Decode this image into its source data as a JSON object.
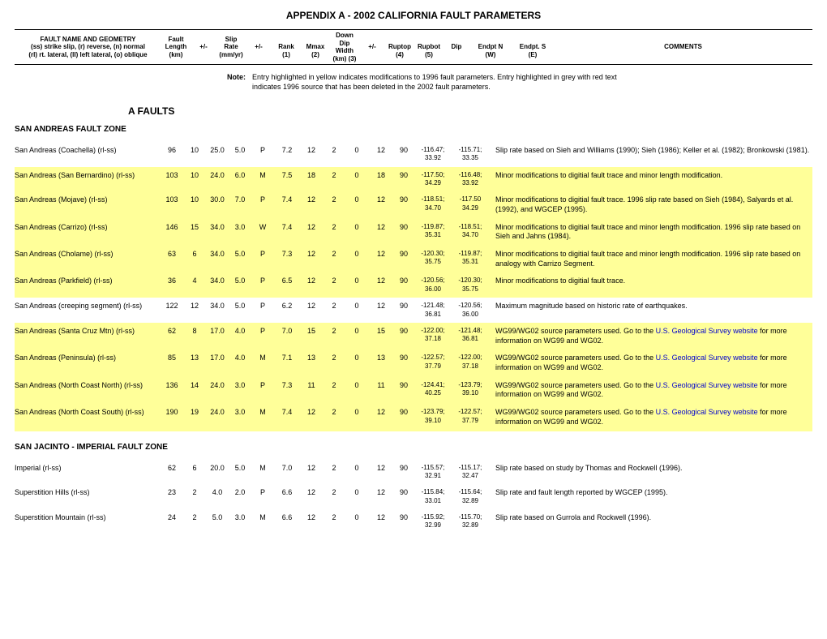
{
  "title": "APPENDIX A - 2002 CALIFORNIA FAULT PARAMETERS",
  "headers": {
    "col1_l1": "FAULT NAME AND GEOMETRY",
    "col1_l2": "(ss) strike slip, (r) reverse, (n) normal",
    "col1_l3": "(rl) rt. lateral, (ll) left lateral, (o) oblique",
    "col2_l1": "Fault",
    "col2_l2": "Length",
    "col2_l3": "(km)",
    "col3": "+/-",
    "col4_l1": "Slip",
    "col4_l2": "Rate",
    "col4_l3": "(mm/yr)",
    "col5": "+/-",
    "col6_l1": "Rank",
    "col6_l2": "(1)",
    "col7_l1": "Mmax",
    "col7_l2": "(2)",
    "col8_l1": "Down Dip",
    "col8_l2": "Width",
    "col8_l3": "(km) (3)",
    "col9": "+/-",
    "col10_l1": "Ruptop",
    "col10_l2": "(4)",
    "col11_l1": "Rupbot",
    "col11_l2": "(5)",
    "col12": "Dip",
    "col13_l1": "Endpt N",
    "col13_l2": "(W)",
    "col14_l1": "Endpt. S",
    "col14_l2": "(E)",
    "col15": "COMMENTS"
  },
  "note_label": "Note:",
  "note_text": "Entry highlighted in yellow indicates modifications to 1996 fault parameters.  Entry highlighted in grey with red text indicates 1996 source that has been deleted in the 2002 fault parameters.",
  "section_a": "A FAULTS",
  "zones": [
    {
      "heading": "SAN ANDREAS FAULT ZONE",
      "rows": [
        {
          "hl": false,
          "name": "San Andreas (Coachella) (rl-ss)",
          "len": "96",
          "lenpm": "10",
          "rate": "25.0",
          "ratepm": "5.0",
          "rank": "P",
          "mmax": "7.2",
          "width": "12",
          "wpm": "2",
          "rtop": "0",
          "rbot": "12",
          "dip": "90",
          "endn": "-116.47; 33.92",
          "ends": "-115.71; 33.35",
          "comm": "Slip rate based on Sieh and Williams (1990); Sieh (1986); Keller et al. (1982); Bronkowski (1981)."
        },
        {
          "hl": true,
          "name": "San Andreas (San Bernardino) (rl-ss)",
          "len": "103",
          "lenpm": "10",
          "rate": "24.0",
          "ratepm": "6.0",
          "rank": "M",
          "mmax": "7.5",
          "width": "18",
          "wpm": "2",
          "rtop": "0",
          "rbot": "18",
          "dip": "90",
          "endn": "-117.50; 34.29",
          "ends": "-116.48; 33.92",
          "comm": "Minor modifications to digitial fault trace and minor length modification."
        },
        {
          "hl": true,
          "name": "San Andreas (Mojave) (rl-ss)",
          "len": "103",
          "lenpm": "10",
          "rate": "30.0",
          "ratepm": "7.0",
          "rank": "P",
          "mmax": "7.4",
          "width": "12",
          "wpm": "2",
          "rtop": "0",
          "rbot": "12",
          "dip": "90",
          "endn": "-118.51; 34.70",
          "ends": "-117.50 34.29",
          "comm": "Minor modifications to digitial fault trace. 1996 slip rate based on Sieh (1984), Salyards et al. (1992), and WGCEP (1995)."
        },
        {
          "hl": true,
          "name": "San Andreas (Carrizo) (rl-ss)",
          "len": "146",
          "lenpm": "15",
          "rate": "34.0",
          "ratepm": "3.0",
          "rank": "W",
          "mmax": "7.4",
          "width": "12",
          "wpm": "2",
          "rtop": "0",
          "rbot": "12",
          "dip": "90",
          "endn": "-119.87; 35.31",
          "ends": "-118.51; 34.70",
          "comm": "Minor modifications to digitial fault trace and minor length modification. 1996 slip rate based on Sieh and Jahns (1984)."
        },
        {
          "hl": true,
          "name": "San Andreas (Cholame) (rl-ss)",
          "len": "63",
          "lenpm": "6",
          "rate": "34.0",
          "ratepm": "5.0",
          "rank": "P",
          "mmax": "7.3",
          "width": "12",
          "wpm": "2",
          "rtop": "0",
          "rbot": "12",
          "dip": "90",
          "endn": "-120.30; 35.75",
          "ends": "-119.87; 35.31",
          "comm": "Minor modifications to digitial fault trace and minor length modification. 1996 slip rate based on analogy with Carrizo Segment."
        },
        {
          "hl": true,
          "name": "San  Andreas (Parkfield) (rl-ss)",
          "len": "36",
          "lenpm": "4",
          "rate": "34.0",
          "ratepm": "5.0",
          "rank": "P",
          "mmax": "6.5",
          "width": "12",
          "wpm": "2",
          "rtop": "0",
          "rbot": "12",
          "dip": "90",
          "endn": "-120.56; 36.00",
          "ends": "-120.30; 35.75",
          "comm": "Minor modifications to digitial fault trace."
        },
        {
          "hl": false,
          "name": "San Andreas (creeping segment) (rl-ss)",
          "len": "122",
          "lenpm": "12",
          "rate": "34.0",
          "ratepm": "5.0",
          "rank": "P",
          "mmax": "6.2",
          "width": "12",
          "wpm": "2",
          "rtop": "0",
          "rbot": "12",
          "dip": "90",
          "endn": "-121.48; 36.81",
          "ends": "-120.56; 36.00",
          "comm": "Maximum magnitude based on historic rate of earthquakes."
        },
        {
          "hl": true,
          "name": "San Andreas (Santa Cruz Mtn) (rl-ss)",
          "len": "62",
          "lenpm": "8",
          "rate": "17.0",
          "ratepm": "4.0",
          "rank": "P",
          "mmax": "7.0",
          "width": "15",
          "wpm": "2",
          "rtop": "0",
          "rbot": "15",
          "dip": "90",
          "endn": "-122.00; 37.18",
          "ends": "-121.48; 36.81",
          "comm": "WG99/WG02 source parameters used. Go to the ",
          "link": "U.S. Geological Survey website",
          "comm2": " for more information on WG99 and WG02."
        },
        {
          "hl": true,
          "name": "San Andreas (Peninsula) (rl-ss)",
          "len": "85",
          "lenpm": "13",
          "rate": "17.0",
          "ratepm": "4.0",
          "rank": "M",
          "mmax": "7.1",
          "width": "13",
          "wpm": "2",
          "rtop": "0",
          "rbot": "13",
          "dip": "90",
          "endn": "-122.57; 37.79",
          "ends": "-122.00; 37.18",
          "comm": "WG99/WG02 source parameters used. Go to the ",
          "link": "U.S. Geological Survey website",
          "comm2": " for more information on WG99 and WG02."
        },
        {
          "hl": true,
          "name": "San Andreas (North Coast North) (rl-ss)",
          "len": "136",
          "lenpm": "14",
          "rate": "24.0",
          "ratepm": "3.0",
          "rank": "P",
          "mmax": "7.3",
          "width": "11",
          "wpm": "2",
          "rtop": "0",
          "rbot": "11",
          "dip": "90",
          "endn": "-124.41; 40.25",
          "ends": "-123.79; 39.10",
          "comm": "WG99/WG02 source parameters used. Go to the ",
          "link": "U.S. Geological Survey website",
          "comm2": " for more information on WG99 and WG02."
        },
        {
          "hl": true,
          "name": "San Andreas (North Coast South) (rl-ss)",
          "len": "190",
          "lenpm": "19",
          "rate": "24.0",
          "ratepm": "3.0",
          "rank": "M",
          "mmax": "7.4",
          "width": "12",
          "wpm": "2",
          "rtop": "0",
          "rbot": "12",
          "dip": "90",
          "endn": "-123.79; 39.10",
          "ends": "-122.57; 37.79",
          "comm": "WG99/WG02 source parameters used. Go to the ",
          "link": "U.S. Geological Survey website",
          "comm2": " for more information on WG99 and WG02."
        }
      ]
    },
    {
      "heading": "SAN JACINTO - IMPERIAL FAULT ZONE",
      "rows": [
        {
          "hl": false,
          "name": "Imperial  (rl-ss)",
          "len": "62",
          "lenpm": "6",
          "rate": "20.0",
          "ratepm": "5.0",
          "rank": "M",
          "mmax": "7.0",
          "width": "12",
          "wpm": "2",
          "rtop": "0",
          "rbot": "12",
          "dip": "90",
          "endn": "-115.57; 32.91",
          "ends": "-115.17; 32.47",
          "comm": "Slip rate based on study by Thomas and Rockwell (1996)."
        },
        {
          "hl": false,
          "name": "Superstition Hills (rl-ss)",
          "len": "23",
          "lenpm": "2",
          "rate": "4.0",
          "ratepm": "2.0",
          "rank": "P",
          "mmax": "6.6",
          "width": "12",
          "wpm": "2",
          "rtop": "0",
          "rbot": "12",
          "dip": "90",
          "endn": "-115.84; 33.01",
          "ends": "-115.64; 32.89",
          "comm": "Slip rate and fault length reported by WGCEP (1995)."
        },
        {
          "hl": false,
          "name": "Superstition Mountain (rl-ss)",
          "len": "24",
          "lenpm": "2",
          "rate": "5.0",
          "ratepm": "3.0",
          "rank": "M",
          "mmax": "6.6",
          "width": "12",
          "wpm": "2",
          "rtop": "0",
          "rbot": "12",
          "dip": "90",
          "endn": "-115.92; 32.99",
          "ends": "-115.70; 32.89",
          "comm": "Slip rate based on Gurrola and Rockwell (1996)."
        }
      ]
    }
  ]
}
